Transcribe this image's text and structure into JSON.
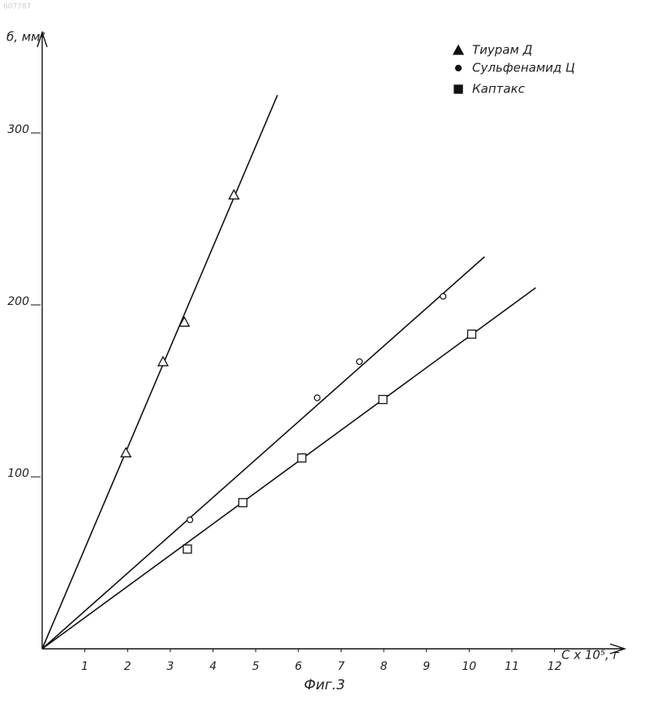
{
  "chart_data": {
    "type": "scatter",
    "id_text": "607787",
    "y_label": "б, мм²",
    "x_label": "C x 10⁵, г",
    "caption": "Фиг.3",
    "xlim": [
      0,
      13.3
    ],
    "ylim": [
      0,
      358
    ],
    "xticks": [
      1,
      2,
      3,
      4,
      5,
      6,
      7,
      8,
      9,
      10,
      11,
      12
    ],
    "yticks": [
      100,
      200,
      300
    ],
    "series": [
      {
        "name": "Тиурам Д",
        "color": "#111",
        "marker": "triangle",
        "x": [
          1.96,
          2.83,
          3.33,
          4.49
        ],
        "y": [
          114,
          167,
          190,
          264
        ],
        "fit_x": [
          0,
          5.51
        ],
        "fit_y": [
          0,
          322
        ]
      },
      {
        "name": "Сульфенамид Ц",
        "color": "#111",
        "marker": "circle",
        "x": [
          3.46,
          6.44,
          7.43,
          9.39
        ],
        "y": [
          75,
          146,
          167,
          205
        ],
        "fit_x": [
          0,
          10.36
        ],
        "fit_y": [
          0,
          228
        ]
      },
      {
        "name": "Каптакс",
        "color": "#111",
        "marker": "square",
        "x": [
          3.4,
          4.7,
          6.08,
          7.98,
          10.06
        ],
        "y": [
          58,
          85,
          111,
          145,
          183
        ],
        "fit_x": [
          0,
          11.56
        ],
        "fit_y": [
          0,
          210
        ]
      }
    ]
  }
}
